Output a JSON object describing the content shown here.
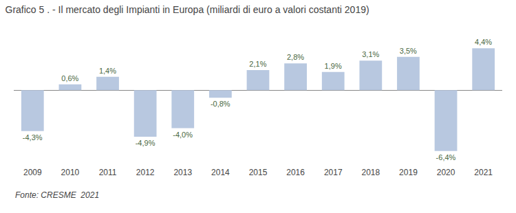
{
  "chart_data": {
    "type": "bar",
    "title": "Grafico 5 . - Il mercato degli Impianti in Europa (miliardi di euro a valori costanti 2019)",
    "categories": [
      "2009",
      "2010",
      "2011",
      "2012",
      "2013",
      "2014",
      "2015",
      "2016",
      "2017",
      "2018",
      "2019",
      "2020",
      "2021"
    ],
    "values": [
      -4.3,
      0.6,
      1.4,
      -4.9,
      -4.0,
      -0.8,
      2.1,
      2.8,
      1.9,
      3.1,
      3.5,
      -6.4,
      4.4
    ],
    "value_labels": [
      "-4,3%",
      "0,6%",
      "1,4%",
      "-4,9%",
      "-4,0%",
      "-0,8%",
      "2,1%",
      "2,8%",
      "1,9%",
      "3,1%",
      "3,5%",
      "-6,4%",
      "4,4%"
    ],
    "data_labels": true,
    "color": "#b8c8e0",
    "ylim": [
      -8,
      6
    ],
    "tick_labels": "x",
    "grid": false,
    "annotations": [
      "Fonte: CRESME  2021"
    ]
  }
}
